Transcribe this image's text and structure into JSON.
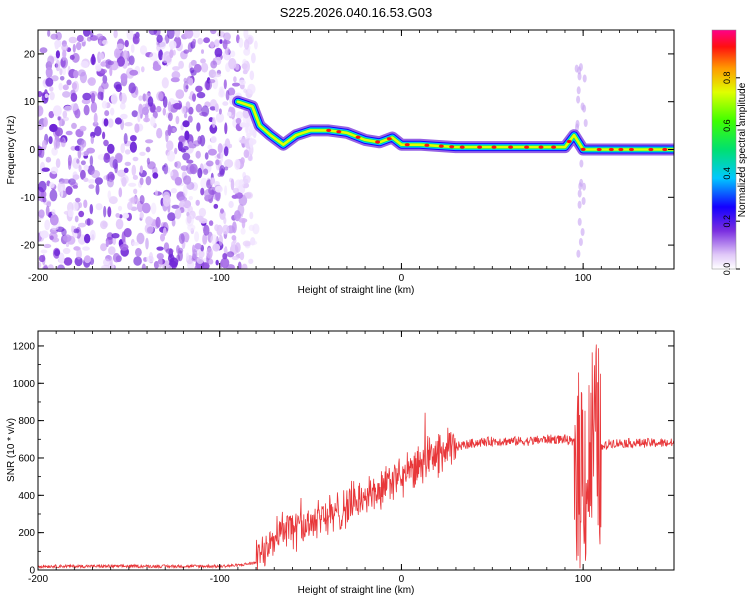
{
  "title": "S225.2026.040.16.53.G03",
  "chart_data": [
    {
      "type": "heatmap",
      "name": "spectrogram",
      "xlabel": "Height of straight line (km)",
      "ylabel": "Frequency (Hz)",
      "xlim": [
        -200,
        150
      ],
      "ylim": [
        -25,
        25
      ],
      "x_ticks": [
        "-200",
        "-100",
        "0",
        "100"
      ],
      "y_ticks": [
        "20",
        "10",
        "0",
        "-10",
        "-20"
      ],
      "colorbar": {
        "label": "Normalized spectral amplitude",
        "range": [
          0,
          1
        ],
        "ticks": [
          "0.0",
          "0.2",
          "0.4",
          "0.6",
          "0.8"
        ]
      },
      "signal_ridge": {
        "points": [
          {
            "x": -90,
            "y": 10
          },
          {
            "x": -82,
            "y": 9
          },
          {
            "x": -78,
            "y": 5
          },
          {
            "x": -72,
            "y": 3
          },
          {
            "x": -65,
            "y": 1
          },
          {
            "x": -58,
            "y": 3
          },
          {
            "x": -50,
            "y": 4
          },
          {
            "x": -40,
            "y": 4
          },
          {
            "x": -30,
            "y": 3.5
          },
          {
            "x": -20,
            "y": 2
          },
          {
            "x": -12,
            "y": 1.5
          },
          {
            "x": -5,
            "y": 2.5
          },
          {
            "x": 0,
            "y": 1
          },
          {
            "x": 10,
            "y": 1
          },
          {
            "x": 30,
            "y": 0.5
          },
          {
            "x": 60,
            "y": 0.5
          },
          {
            "x": 90,
            "y": 0.5
          },
          {
            "x": 95,
            "y": 3
          },
          {
            "x": 100,
            "y": 0
          },
          {
            "x": 150,
            "y": 0
          }
        ],
        "noise_region_x": [
          -200,
          -80
        ]
      }
    },
    {
      "type": "line",
      "name": "snr",
      "xlabel": "Height of straight line (km)",
      "ylabel": "SNR (10 * v/v)",
      "xlim": [
        -200,
        150
      ],
      "ylim": [
        0,
        1280
      ],
      "x_ticks": [
        "-200",
        "-100",
        "0",
        "100"
      ],
      "y_ticks": [
        "0",
        "200",
        "400",
        "600",
        "800",
        "1000",
        "1200"
      ],
      "color": "#e8373a",
      "series": [
        {
          "name": "SNR",
          "x": [
            -200,
            -180,
            -160,
            -140,
            -120,
            -100,
            -90,
            -80,
            -75,
            -70,
            -65,
            -60,
            -55,
            -50,
            -45,
            -40,
            -35,
            -30,
            -25,
            -20,
            -15,
            -10,
            -5,
            0,
            5,
            10,
            20,
            30,
            40,
            50,
            60,
            70,
            80,
            90,
            95,
            98,
            100,
            102,
            105,
            108,
            110,
            115,
            120,
            130,
            140,
            150
          ],
          "y": [
            20,
            20,
            20,
            20,
            20,
            20,
            25,
            40,
            120,
            200,
            230,
            210,
            220,
            260,
            300,
            290,
            300,
            340,
            380,
            390,
            410,
            430,
            480,
            490,
            520,
            560,
            620,
            660,
            680,
            690,
            690,
            690,
            700,
            700,
            680,
            500,
            650,
            450,
            700,
            680,
            650,
            680,
            680,
            680,
            680,
            680
          ]
        }
      ]
    }
  ]
}
